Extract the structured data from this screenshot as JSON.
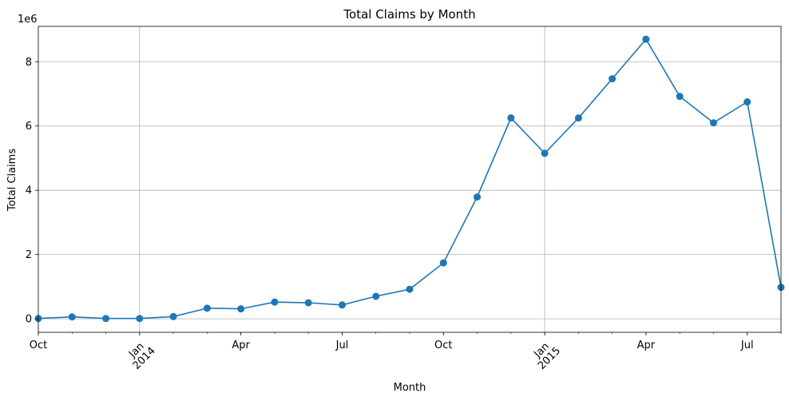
{
  "chart_data": {
    "type": "line",
    "title": "Total Claims by Month",
    "xlabel": "Month",
    "ylabel": "Total Claims",
    "y_multiplier_label": "1e6",
    "grid": true,
    "marker": "circle",
    "color": "#1f77b4",
    "xlim": [
      "2013-10",
      "2015-08"
    ],
    "ylim": [
      -0.42,
      9.1
    ],
    "y_unit": "millions",
    "x_ticks": [
      {
        "x": "2013-10",
        "label": "Oct",
        "sublabel": "",
        "rotated": false
      },
      {
        "x": "2014-01",
        "label": "Jan",
        "sublabel": "2014",
        "rotated": true
      },
      {
        "x": "2014-04",
        "label": "Apr",
        "sublabel": "",
        "rotated": false
      },
      {
        "x": "2014-07",
        "label": "Jul",
        "sublabel": "",
        "rotated": false
      },
      {
        "x": "2014-10",
        "label": "Oct",
        "sublabel": "",
        "rotated": false
      },
      {
        "x": "2015-01",
        "label": "Jan",
        "sublabel": "2015",
        "rotated": true
      },
      {
        "x": "2015-04",
        "label": "Apr",
        "sublabel": "",
        "rotated": false
      },
      {
        "x": "2015-07",
        "label": "Jul",
        "sublabel": "",
        "rotated": false
      }
    ],
    "y_ticks": [
      0,
      2,
      4,
      6,
      8
    ],
    "series": [
      {
        "points": [
          {
            "x": "2013-10",
            "y": 0.01
          },
          {
            "x": "2013-11",
            "y": 0.06
          },
          {
            "x": "2013-12",
            "y": 0.01
          },
          {
            "x": "2014-01",
            "y": 0.01
          },
          {
            "x": "2014-02",
            "y": 0.07
          },
          {
            "x": "2014-03",
            "y": 0.33
          },
          {
            "x": "2014-04",
            "y": 0.31
          },
          {
            "x": "2014-05",
            "y": 0.52
          },
          {
            "x": "2014-06",
            "y": 0.5
          },
          {
            "x": "2014-07",
            "y": 0.43
          },
          {
            "x": "2014-08",
            "y": 0.7
          },
          {
            "x": "2014-09",
            "y": 0.92
          },
          {
            "x": "2014-10",
            "y": 1.74
          },
          {
            "x": "2014-11",
            "y": 3.79
          },
          {
            "x": "2014-12",
            "y": 6.25
          },
          {
            "x": "2015-01",
            "y": 5.15
          },
          {
            "x": "2015-02",
            "y": 6.25
          },
          {
            "x": "2015-03",
            "y": 7.47
          },
          {
            "x": "2015-04",
            "y": 8.7
          },
          {
            "x": "2015-05",
            "y": 6.92
          },
          {
            "x": "2015-06",
            "y": 6.1
          },
          {
            "x": "2015-07",
            "y": 6.75
          },
          {
            "x": "2015-08",
            "y": 0.98
          }
        ]
      }
    ]
  }
}
